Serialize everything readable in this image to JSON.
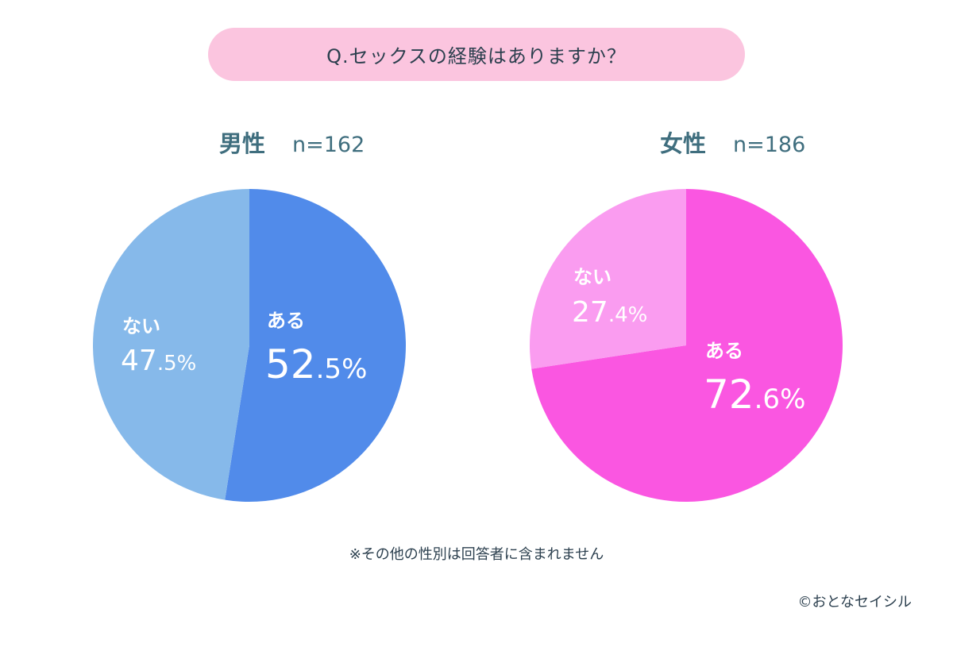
{
  "question": "Q.セックスの経験はありますか？",
  "footnote": "※その他の性別は回答者に含まれません",
  "credit": "©おとなセイシル",
  "chart_data": [
    {
      "type": "pie",
      "title": "男性",
      "n_label": "n=162",
      "slices": [
        {
          "label": "ある",
          "value": 52.5,
          "color": "#518bea"
        },
        {
          "label": "ない",
          "value": 47.5,
          "color": "#86b9ea"
        }
      ]
    },
    {
      "type": "pie",
      "title": "女性",
      "n_label": "n=186",
      "slices": [
        {
          "label": "ある",
          "value": 72.6,
          "color": "#fa56e1"
        },
        {
          "label": "ない",
          "value": 27.4,
          "color": "#fa9cf0"
        }
      ]
    }
  ]
}
